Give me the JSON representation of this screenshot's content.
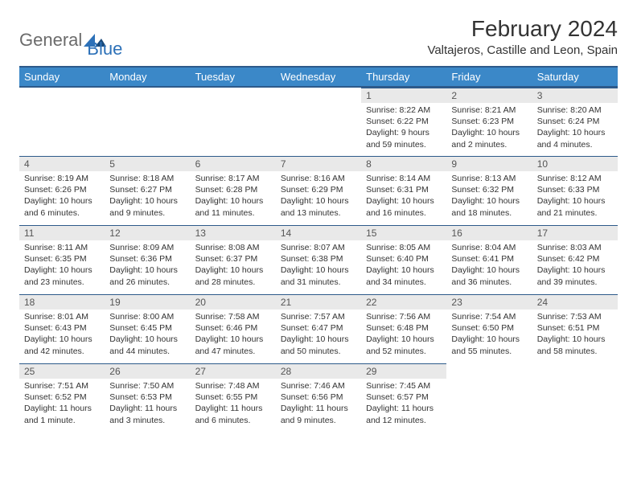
{
  "logo": {
    "general": "General",
    "blue": "Blue"
  },
  "title": "February 2024",
  "location": "Valtajeros, Castille and Leon, Spain",
  "colors": {
    "header_bg": "#3b88c8",
    "header_border": "#2d5a8a",
    "daynum_bg": "#e9e9e9",
    "logo_blue": "#2d71b8",
    "logo_gray": "#6b6b6b"
  },
  "weekdays": [
    "Sunday",
    "Monday",
    "Tuesday",
    "Wednesday",
    "Thursday",
    "Friday",
    "Saturday"
  ],
  "weeks": [
    [
      {
        "empty": true
      },
      {
        "empty": true
      },
      {
        "empty": true
      },
      {
        "empty": true
      },
      {
        "day": "1",
        "sunrise": "Sunrise: 8:22 AM",
        "sunset": "Sunset: 6:22 PM",
        "daylight": "Daylight: 9 hours and 59 minutes."
      },
      {
        "day": "2",
        "sunrise": "Sunrise: 8:21 AM",
        "sunset": "Sunset: 6:23 PM",
        "daylight": "Daylight: 10 hours and 2 minutes."
      },
      {
        "day": "3",
        "sunrise": "Sunrise: 8:20 AM",
        "sunset": "Sunset: 6:24 PM",
        "daylight": "Daylight: 10 hours and 4 minutes."
      }
    ],
    [
      {
        "day": "4",
        "sunrise": "Sunrise: 8:19 AM",
        "sunset": "Sunset: 6:26 PM",
        "daylight": "Daylight: 10 hours and 6 minutes."
      },
      {
        "day": "5",
        "sunrise": "Sunrise: 8:18 AM",
        "sunset": "Sunset: 6:27 PM",
        "daylight": "Daylight: 10 hours and 9 minutes."
      },
      {
        "day": "6",
        "sunrise": "Sunrise: 8:17 AM",
        "sunset": "Sunset: 6:28 PM",
        "daylight": "Daylight: 10 hours and 11 minutes."
      },
      {
        "day": "7",
        "sunrise": "Sunrise: 8:16 AM",
        "sunset": "Sunset: 6:29 PM",
        "daylight": "Daylight: 10 hours and 13 minutes."
      },
      {
        "day": "8",
        "sunrise": "Sunrise: 8:14 AM",
        "sunset": "Sunset: 6:31 PM",
        "daylight": "Daylight: 10 hours and 16 minutes."
      },
      {
        "day": "9",
        "sunrise": "Sunrise: 8:13 AM",
        "sunset": "Sunset: 6:32 PM",
        "daylight": "Daylight: 10 hours and 18 minutes."
      },
      {
        "day": "10",
        "sunrise": "Sunrise: 8:12 AM",
        "sunset": "Sunset: 6:33 PM",
        "daylight": "Daylight: 10 hours and 21 minutes."
      }
    ],
    [
      {
        "day": "11",
        "sunrise": "Sunrise: 8:11 AM",
        "sunset": "Sunset: 6:35 PM",
        "daylight": "Daylight: 10 hours and 23 minutes."
      },
      {
        "day": "12",
        "sunrise": "Sunrise: 8:09 AM",
        "sunset": "Sunset: 6:36 PM",
        "daylight": "Daylight: 10 hours and 26 minutes."
      },
      {
        "day": "13",
        "sunrise": "Sunrise: 8:08 AM",
        "sunset": "Sunset: 6:37 PM",
        "daylight": "Daylight: 10 hours and 28 minutes."
      },
      {
        "day": "14",
        "sunrise": "Sunrise: 8:07 AM",
        "sunset": "Sunset: 6:38 PM",
        "daylight": "Daylight: 10 hours and 31 minutes."
      },
      {
        "day": "15",
        "sunrise": "Sunrise: 8:05 AM",
        "sunset": "Sunset: 6:40 PM",
        "daylight": "Daylight: 10 hours and 34 minutes."
      },
      {
        "day": "16",
        "sunrise": "Sunrise: 8:04 AM",
        "sunset": "Sunset: 6:41 PM",
        "daylight": "Daylight: 10 hours and 36 minutes."
      },
      {
        "day": "17",
        "sunrise": "Sunrise: 8:03 AM",
        "sunset": "Sunset: 6:42 PM",
        "daylight": "Daylight: 10 hours and 39 minutes."
      }
    ],
    [
      {
        "day": "18",
        "sunrise": "Sunrise: 8:01 AM",
        "sunset": "Sunset: 6:43 PM",
        "daylight": "Daylight: 10 hours and 42 minutes."
      },
      {
        "day": "19",
        "sunrise": "Sunrise: 8:00 AM",
        "sunset": "Sunset: 6:45 PM",
        "daylight": "Daylight: 10 hours and 44 minutes."
      },
      {
        "day": "20",
        "sunrise": "Sunrise: 7:58 AM",
        "sunset": "Sunset: 6:46 PM",
        "daylight": "Daylight: 10 hours and 47 minutes."
      },
      {
        "day": "21",
        "sunrise": "Sunrise: 7:57 AM",
        "sunset": "Sunset: 6:47 PM",
        "daylight": "Daylight: 10 hours and 50 minutes."
      },
      {
        "day": "22",
        "sunrise": "Sunrise: 7:56 AM",
        "sunset": "Sunset: 6:48 PM",
        "daylight": "Daylight: 10 hours and 52 minutes."
      },
      {
        "day": "23",
        "sunrise": "Sunrise: 7:54 AM",
        "sunset": "Sunset: 6:50 PM",
        "daylight": "Daylight: 10 hours and 55 minutes."
      },
      {
        "day": "24",
        "sunrise": "Sunrise: 7:53 AM",
        "sunset": "Sunset: 6:51 PM",
        "daylight": "Daylight: 10 hours and 58 minutes."
      }
    ],
    [
      {
        "day": "25",
        "sunrise": "Sunrise: 7:51 AM",
        "sunset": "Sunset: 6:52 PM",
        "daylight": "Daylight: 11 hours and 1 minute."
      },
      {
        "day": "26",
        "sunrise": "Sunrise: 7:50 AM",
        "sunset": "Sunset: 6:53 PM",
        "daylight": "Daylight: 11 hours and 3 minutes."
      },
      {
        "day": "27",
        "sunrise": "Sunrise: 7:48 AM",
        "sunset": "Sunset: 6:55 PM",
        "daylight": "Daylight: 11 hours and 6 minutes."
      },
      {
        "day": "28",
        "sunrise": "Sunrise: 7:46 AM",
        "sunset": "Sunset: 6:56 PM",
        "daylight": "Daylight: 11 hours and 9 minutes."
      },
      {
        "day": "29",
        "sunrise": "Sunrise: 7:45 AM",
        "sunset": "Sunset: 6:57 PM",
        "daylight": "Daylight: 11 hours and 12 minutes."
      },
      {
        "empty": true
      },
      {
        "empty": true
      }
    ]
  ]
}
